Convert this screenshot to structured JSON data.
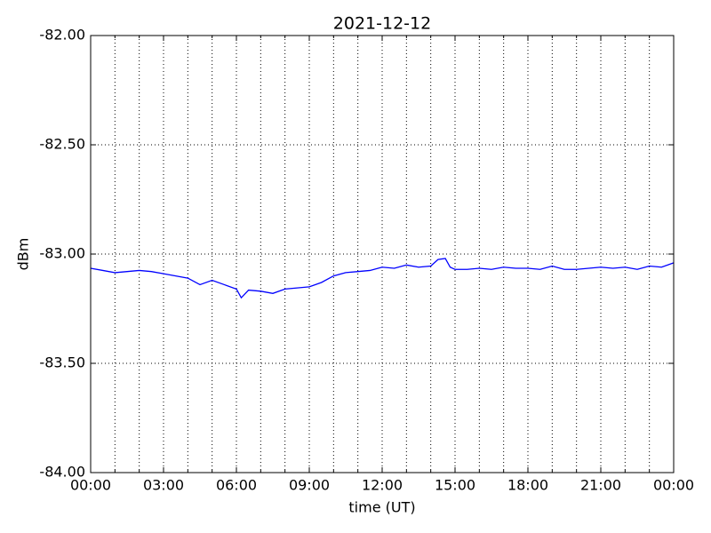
{
  "chart_data": {
    "type": "line",
    "title": "2021-12-12",
    "x_label": "time (UT)",
    "y_label": "dBm",
    "x": [
      0,
      0.5,
      1,
      1.5,
      2,
      2.5,
      3,
      3.5,
      4,
      4.5,
      5,
      5.5,
      6,
      6.2,
      6.5,
      7,
      7.5,
      8,
      8.5,
      9,
      9.5,
      10,
      10.5,
      11,
      11.5,
      12,
      12.5,
      13,
      13.5,
      14,
      14.3,
      14.6,
      14.8,
      15,
      15.5,
      16,
      16.5,
      17,
      17.5,
      18,
      18.5,
      19,
      19.5,
      20,
      20.5,
      21,
      21.5,
      22,
      22.5,
      23,
      23.5,
      24
    ],
    "series": [
      {
        "color": "#0000ff",
        "values": [
          -83.065,
          -83.075,
          -83.085,
          -83.08,
          -83.075,
          -83.08,
          -83.09,
          -83.1,
          -83.11,
          -83.14,
          -83.12,
          -83.14,
          -83.16,
          -83.2,
          -83.165,
          -83.17,
          -83.18,
          -83.16,
          -83.155,
          -83.15,
          -83.13,
          -83.1,
          -83.085,
          -83.08,
          -83.075,
          -83.06,
          -83.065,
          -83.05,
          -83.06,
          -83.055,
          -83.025,
          -83.02,
          -83.06,
          -83.07,
          -83.07,
          -83.065,
          -83.07,
          -83.06,
          -83.065,
          -83.065,
          -83.07,
          -83.055,
          -83.07,
          -83.07,
          -83.065,
          -83.06,
          -83.065,
          -83.06,
          -83.07,
          -83.055,
          -83.06,
          -83.04
        ]
      }
    ],
    "xlim": [
      0,
      24
    ],
    "xticks": [
      {
        "value": 0,
        "label": "00:00"
      },
      {
        "value": 3,
        "label": "03:00"
      },
      {
        "value": 6,
        "label": "06:00"
      },
      {
        "value": 9,
        "label": "09:00"
      },
      {
        "value": 12,
        "label": "12:00"
      },
      {
        "value": 15,
        "label": "15:00"
      },
      {
        "value": 18,
        "label": "18:00"
      },
      {
        "value": 21,
        "label": "21:00"
      },
      {
        "value": 24,
        "label": "00:00"
      }
    ],
    "x_minor_ticks": [
      1,
      2,
      4,
      5,
      7,
      8,
      10,
      11,
      13,
      14,
      16,
      17,
      19,
      20,
      22,
      23
    ],
    "ylim": [
      -84,
      -82
    ],
    "yticks": [
      {
        "value": -84,
        "label": "-84.00"
      },
      {
        "value": -83.5,
        "label": "-83.50"
      },
      {
        "value": -83,
        "label": "-83.00"
      },
      {
        "value": -82.5,
        "label": "-82.50"
      },
      {
        "value": -82,
        "label": "-82.00"
      }
    ],
    "grid": true
  }
}
